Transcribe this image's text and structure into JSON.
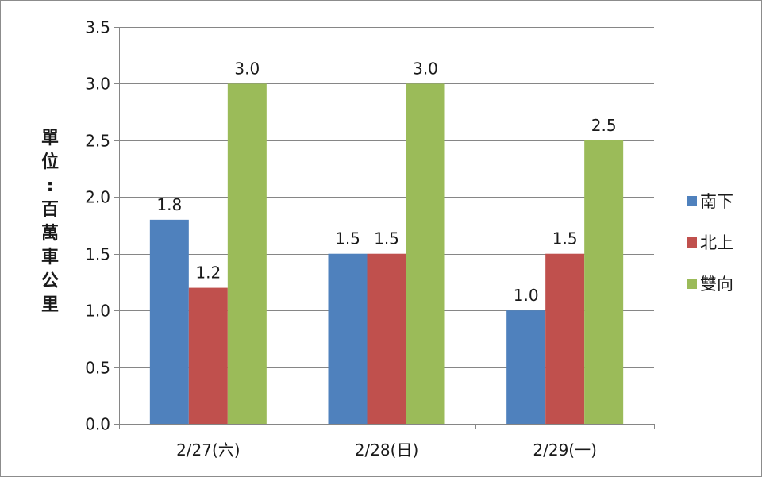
{
  "chart_data": {
    "type": "bar",
    "title": "",
    "xlabel": "",
    "ylabel": "單位：百萬車公里",
    "categories": [
      "2/27(六)",
      "2/28(日)",
      "2/29(一)"
    ],
    "series": [
      {
        "name": "南下",
        "values": [
          1.8,
          1.5,
          1.0
        ],
        "labels": [
          "1.8",
          "1.5",
          "1.0"
        ],
        "color": "#4f81bd"
      },
      {
        "name": "北上",
        "values": [
          1.2,
          1.5,
          1.5
        ],
        "labels": [
          "1.2",
          "1.5",
          "1.5"
        ],
        "color": "#c0504d"
      },
      {
        "name": "雙向",
        "values": [
          3.0,
          3.0,
          2.5
        ],
        "labels": [
          "3.0",
          "3.0",
          "2.5"
        ],
        "color": "#9bbb59"
      }
    ],
    "ylim": [
      0,
      3.5
    ],
    "yticks": [
      0,
      0.5,
      1,
      1.5,
      2,
      2.5,
      3,
      3.5
    ],
    "ytick_labels": [
      "0.0",
      "0.5",
      "1.0",
      "1.5",
      "2.0",
      "2.5",
      "3.0",
      "3.5"
    ],
    "grid": true,
    "legend_position": "right",
    "colors": {
      "gridline": "#868686",
      "axis": "#868686",
      "frame": "#8c8c8c"
    }
  }
}
